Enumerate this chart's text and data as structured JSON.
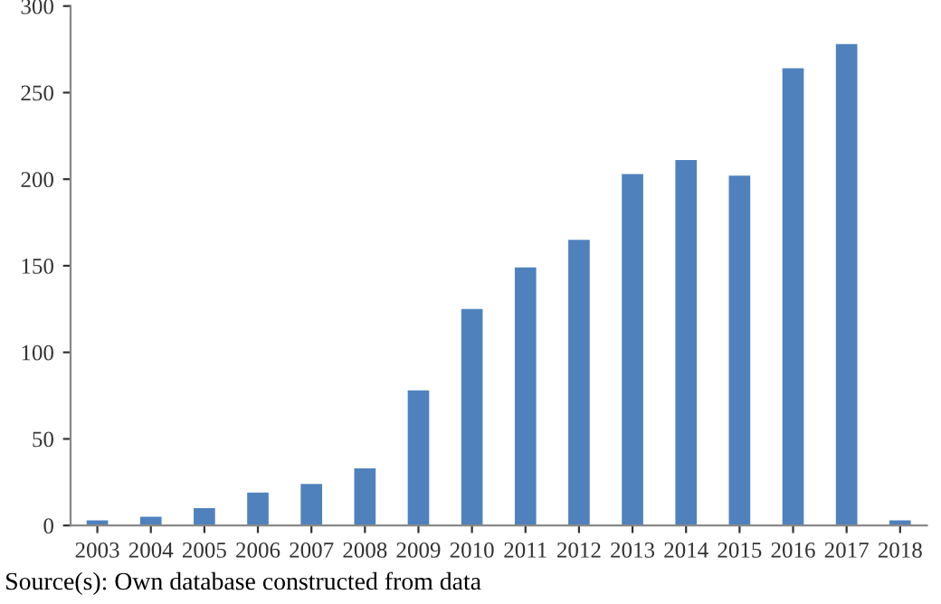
{
  "chart_data": {
    "type": "bar",
    "categories": [
      "2003",
      "2004",
      "2005",
      "2006",
      "2007",
      "2008",
      "2009",
      "2010",
      "2011",
      "2012",
      "2013",
      "2014",
      "2015",
      "2016",
      "2017",
      "2018"
    ],
    "values": [
      3,
      5,
      10,
      19,
      24,
      33,
      78,
      125,
      149,
      165,
      203,
      211,
      202,
      264,
      278,
      3
    ],
    "color": "#4f81bd",
    "ylim": [
      0,
      300
    ],
    "yticks": [
      0,
      50,
      100,
      150,
      200,
      250,
      300
    ],
    "grid": false,
    "annotations": [
      "Source(s): Own database constructed from data"
    ]
  }
}
